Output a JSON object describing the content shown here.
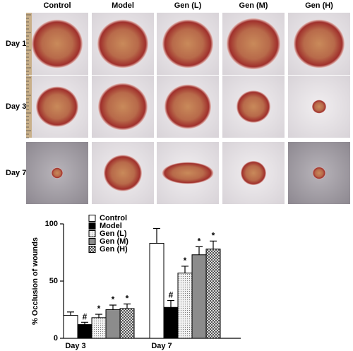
{
  "figure": {
    "columns": [
      "Control",
      "Model",
      "Gen (L)",
      "Gen (M)",
      "Gen (H)"
    ],
    "rows": [
      "Day 1",
      "Day 3",
      "Day 7"
    ]
  },
  "chart_data": {
    "type": "bar",
    "y_label": "% Occlusion of wounds",
    "categories": [
      "Day 3",
      "Day 7"
    ],
    "ylim": [
      0,
      100
    ],
    "yticks": [
      0,
      50,
      100
    ],
    "legend": "top",
    "series": [
      {
        "name": "Control",
        "color": "#ffffff",
        "pattern": "solid",
        "values": [
          20,
          83
        ],
        "errors": [
          3,
          13
        ],
        "markers": [
          null,
          null
        ]
      },
      {
        "name": "Model",
        "color": "#000000",
        "pattern": "solid",
        "values": [
          12,
          27
        ],
        "errors": [
          2,
          6
        ],
        "markers": [
          "#",
          "#"
        ]
      },
      {
        "name": "Gen (L)",
        "color": "#e6e6e6",
        "pattern": "dots",
        "values": [
          18,
          57
        ],
        "errors": [
          3,
          6
        ],
        "markers": [
          "*",
          "*"
        ]
      },
      {
        "name": "Gen (M)",
        "color": "#8c8c8c",
        "pattern": "solid",
        "values": [
          25,
          73
        ],
        "errors": [
          4,
          7
        ],
        "markers": [
          "*",
          "*"
        ]
      },
      {
        "name": "Gen (H)",
        "color": "#ffffff",
        "pattern": "crosshatch",
        "values": [
          26,
          78
        ],
        "errors": [
          4,
          7
        ],
        "markers": [
          "*",
          "*"
        ]
      }
    ]
  }
}
